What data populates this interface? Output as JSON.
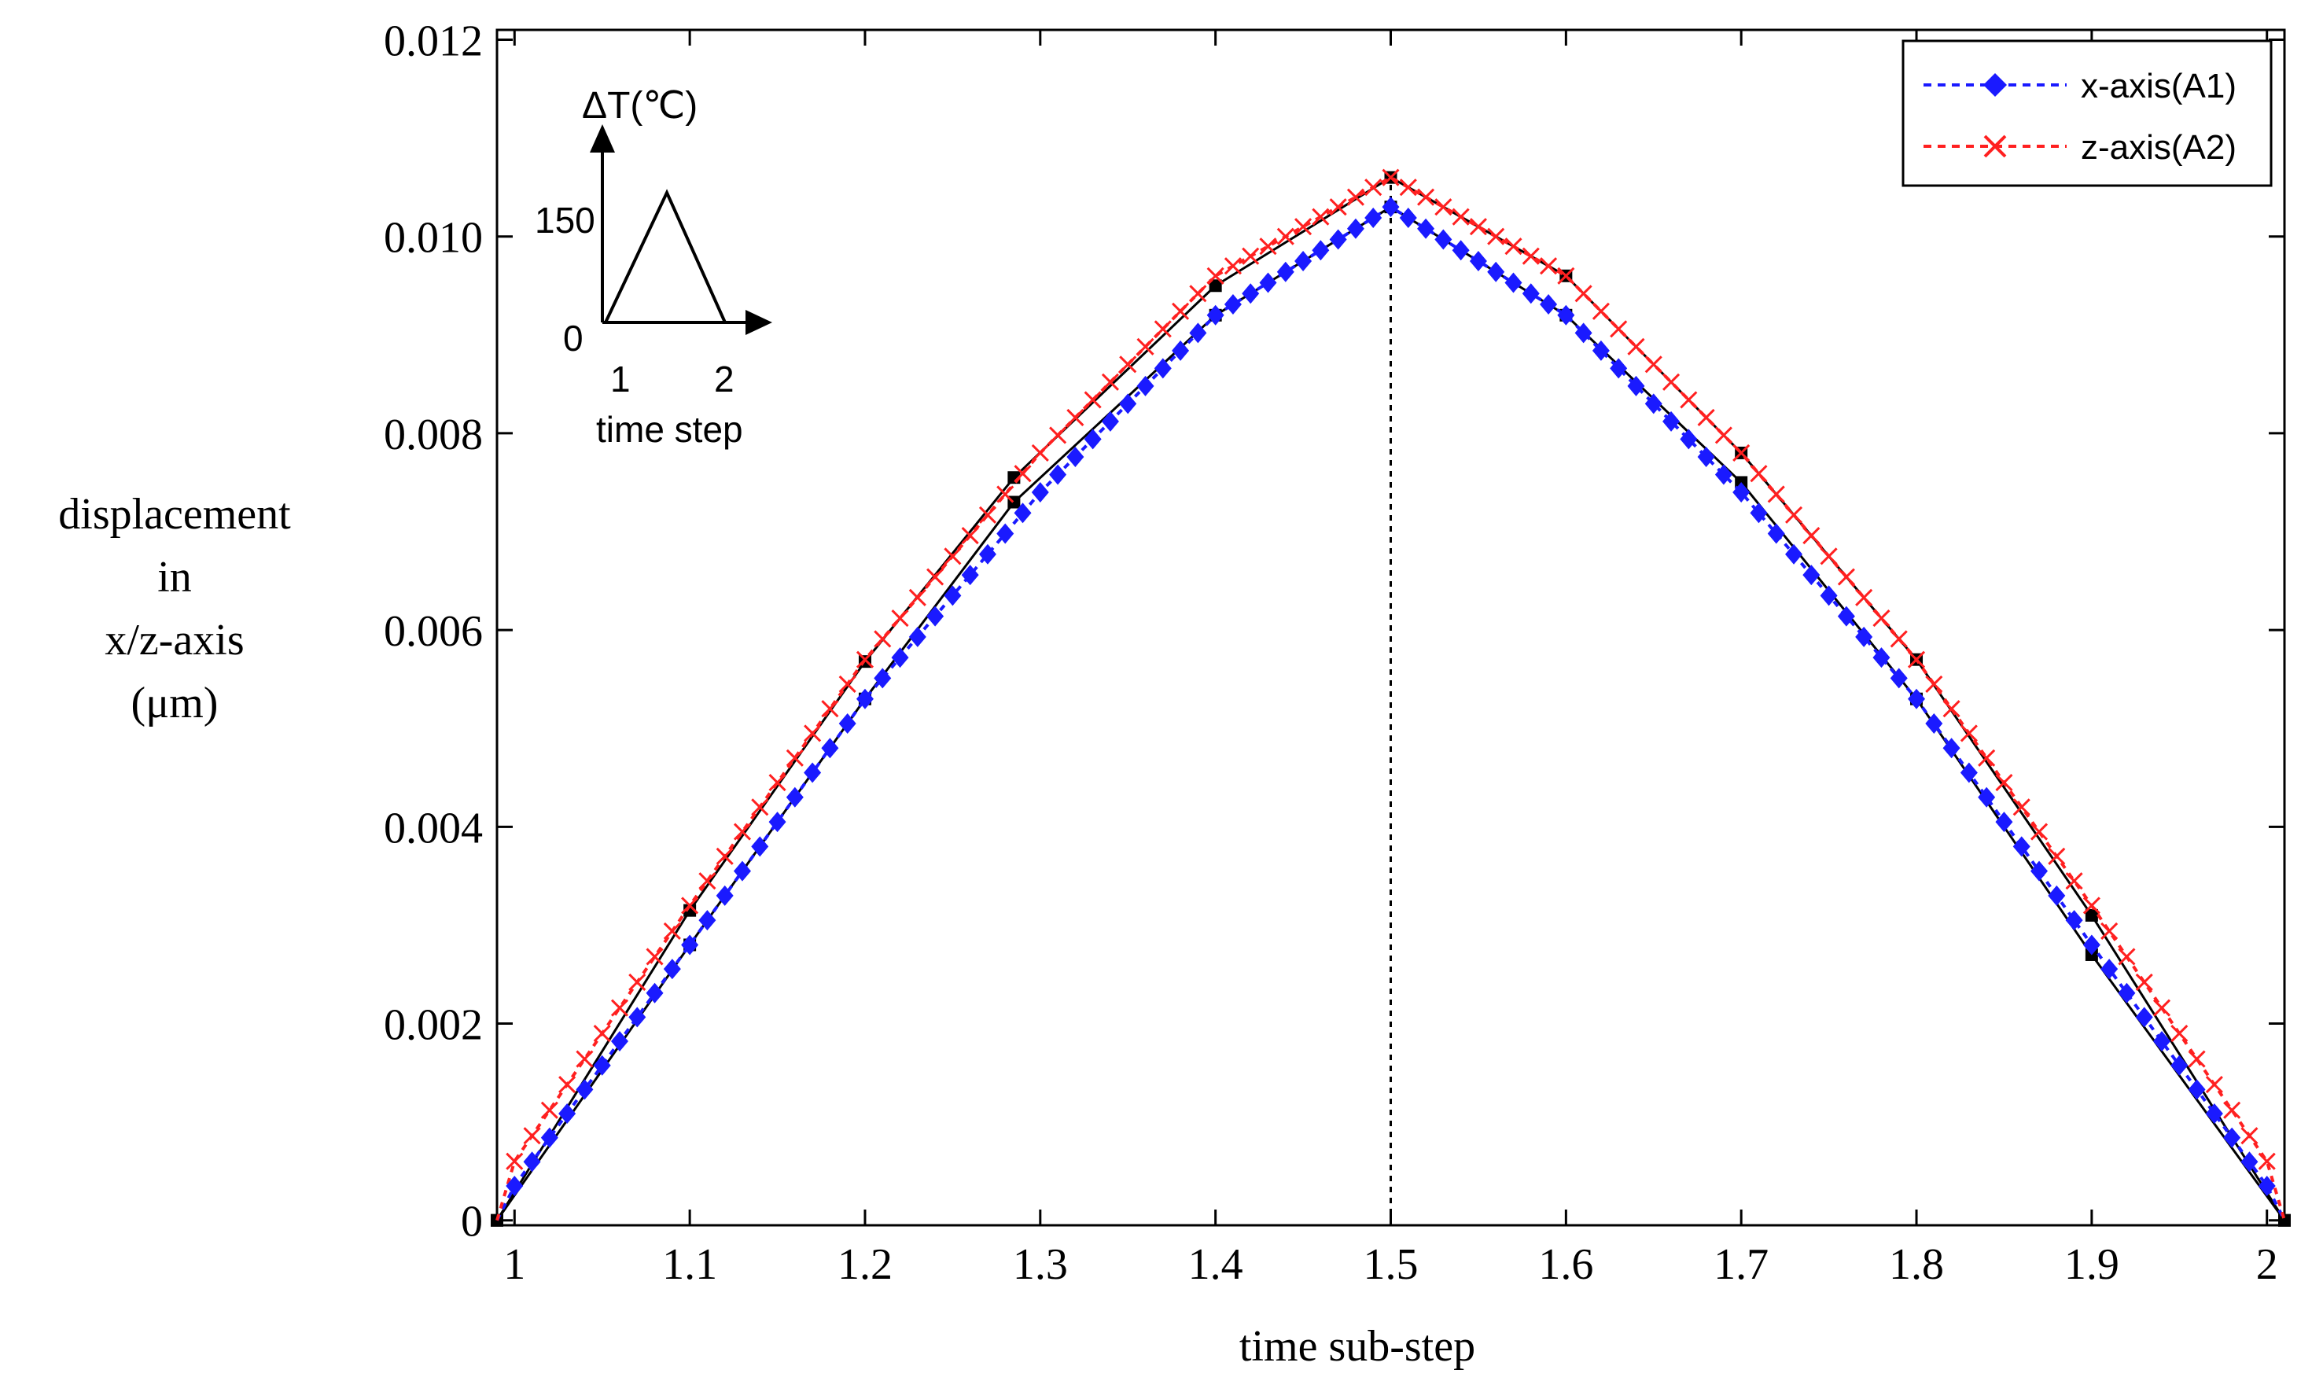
{
  "chart_data": {
    "type": "line",
    "xlabel": "time sub-step",
    "ylabel_lines": [
      "displacement",
      "in",
      "x/z-axis",
      "(μm)"
    ],
    "xlim": [
      0.99,
      2.01
    ],
    "ylim": [
      -5e-05,
      0.0121
    ],
    "xticks": [
      1,
      1.1,
      1.2,
      1.3,
      1.4,
      1.5,
      1.6,
      1.7,
      1.8,
      1.9,
      2
    ],
    "xtick_labels": [
      "1",
      "1.1",
      "1.2",
      "1.3",
      "1.4",
      "1.5",
      "1.6",
      "1.7",
      "1.8",
      "1.9",
      "2"
    ],
    "yticks": [
      0,
      0.002,
      0.004,
      0.006,
      0.008,
      0.01,
      0.012
    ],
    "ytick_labels": [
      "0",
      "0.002",
      "0.004",
      "0.006",
      "0.008",
      "0.010",
      "0.012"
    ],
    "peak_marker_x": 1.5,
    "series": [
      {
        "name": "x-axis(A1)",
        "color": "#1a1aff",
        "marker": "diamond",
        "line_style": "dotted",
        "x": [
          0.99,
          1.0,
          1.1,
          1.2,
          1.3,
          1.4,
          1.5,
          1.6,
          1.7,
          1.8,
          1.9,
          2.0,
          2.01
        ],
        "y": [
          0.0,
          0.00035,
          0.0028,
          0.0053,
          0.0074,
          0.0092,
          0.0103,
          0.0092,
          0.0074,
          0.0053,
          0.0028,
          0.00035,
          0.0
        ]
      },
      {
        "name": "z-axis(A2)",
        "color": "#ff2020",
        "marker": "x",
        "line_style": "dotted",
        "x": [
          0.99,
          1.0,
          1.1,
          1.2,
          1.3,
          1.4,
          1.5,
          1.6,
          1.7,
          1.8,
          1.9,
          2.0,
          2.01
        ],
        "y": [
          0.0,
          0.0006,
          0.0032,
          0.0057,
          0.0078,
          0.0096,
          0.0106,
          0.0096,
          0.0078,
          0.0057,
          0.0032,
          0.0006,
          0.0
        ]
      }
    ],
    "reference_lines": [
      {
        "name": "reference-upper",
        "color": "#000000",
        "x": [
          0.99,
          1.1,
          1.2,
          1.285,
          1.4,
          1.5,
          1.6,
          1.7,
          1.8,
          1.9,
          2.01
        ],
        "y": [
          0.0,
          0.00315,
          0.00568,
          0.00755,
          0.0095,
          0.0106,
          0.0096,
          0.0078,
          0.0057,
          0.0031,
          0.0
        ]
      },
      {
        "name": "reference-lower",
        "color": "#000000",
        "x": [
          0.99,
          1.1,
          1.2,
          1.285,
          1.4,
          1.5,
          1.6,
          1.7,
          1.8,
          1.9,
          2.01
        ],
        "y": [
          0.0,
          0.0028,
          0.0053,
          0.0073,
          0.0092,
          0.0103,
          0.0092,
          0.0075,
          0.0053,
          0.0027,
          0.0
        ]
      }
    ],
    "legend": {
      "placement": "top-right",
      "entries": [
        "x-axis(A1)",
        "z-axis(A2)"
      ]
    },
    "inset": {
      "ylabel": "ΔT(℃)",
      "y_value_label": "150",
      "origin_label": "0",
      "x_tick_labels": [
        "1",
        "2"
      ],
      "xlabel": "time step"
    }
  }
}
